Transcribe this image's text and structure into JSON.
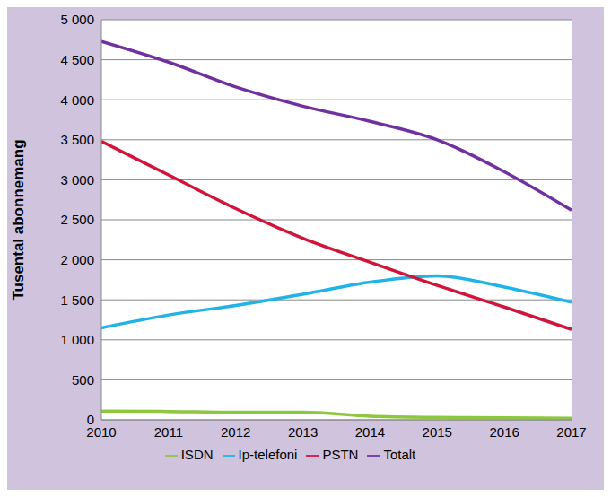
{
  "chart_data": {
    "type": "line",
    "y_label": "Tusental abonnemang",
    "x": [
      2010,
      2011,
      2012,
      2013,
      2014,
      2015,
      2016,
      2017
    ],
    "xlim": [
      2010,
      2017
    ],
    "xticks": [
      2010,
      2011,
      2012,
      2013,
      2014,
      2015,
      2016,
      2017
    ],
    "ylim": [
      0,
      5000
    ],
    "yticks": [
      0,
      500,
      {
        "value": 1000,
        "label": "1 000"
      },
      {
        "value": 1500,
        "label": "1 500"
      },
      {
        "value": 2000,
        "label": "2 000"
      },
      {
        "value": 2500,
        "label": "2 500"
      },
      {
        "value": 3000,
        "label": "3 000"
      },
      {
        "value": 3500,
        "label": "3 500"
      },
      {
        "value": 4000,
        "label": "4 000"
      },
      {
        "value": 4500,
        "label": "4 500"
      },
      {
        "value": 5000,
        "label": "5 000"
      }
    ],
    "grid": true,
    "legend": "bottom",
    "series": [
      {
        "name": "ISDN",
        "color": "#8dc63f",
        "values": [
          110,
          105,
          95,
          95,
          45,
          30,
          25,
          20
        ]
      },
      {
        "name": "Ip-telefoni",
        "color": "#1fb3e8",
        "values": [
          1150,
          1310,
          1430,
          1570,
          1720,
          1800,
          1660,
          1470
        ]
      },
      {
        "name": "PSTN",
        "color": "#d2143a",
        "values": [
          3480,
          3060,
          2640,
          2270,
          1970,
          1680,
          1410,
          1130
        ]
      },
      {
        "name": "Totalt",
        "color": "#7030a0",
        "values": [
          4730,
          4470,
          4160,
          3920,
          3730,
          3500,
          3100,
          2620
        ]
      }
    ]
  }
}
